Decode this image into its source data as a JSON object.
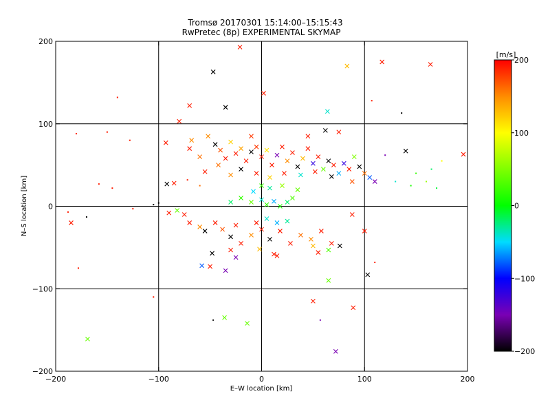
{
  "chart_data": {
    "type": "scatter",
    "title": "Tromsø 20170301 15:14:00–15:15:43",
    "subtitle": "RwPretec (8p) EXPERIMENTAL SKYMAP",
    "xlabel": "E–W location [km]",
    "ylabel": "N–S location [km]",
    "xlim": [
      -200,
      200
    ],
    "ylim": [
      -200,
      200
    ],
    "x_ticks": [
      -200,
      -100,
      0,
      100,
      200
    ],
    "y_ticks": [
      -200,
      -100,
      0,
      100,
      200
    ],
    "x_tick_labels": [
      "−200",
      "−100",
      "0",
      "100",
      "200"
    ],
    "y_tick_labels": [
      "−200",
      "−100",
      "0",
      "100",
      "200"
    ],
    "grid": true,
    "color_by": "velocity",
    "colorbar": {
      "title": "[m/s]",
      "min": -200,
      "max": 200,
      "ticks": [
        200,
        100,
        0,
        -100,
        -200
      ],
      "tick_labels": [
        "200",
        "100",
        "0",
        "−100",
        "−200"
      ],
      "stops": [
        {
          "v": -200,
          "color": "#000000"
        },
        {
          "v": -150,
          "color": "#7a00b4"
        },
        {
          "v": -100,
          "color": "#0000ff"
        },
        {
          "v": -50,
          "color": "#00dcff"
        },
        {
          "v": 0,
          "color": "#00ff00"
        },
        {
          "v": 100,
          "color": "#ffff00"
        },
        {
          "v": 150,
          "color": "#ff8c00"
        },
        {
          "v": 200,
          "color": "#ff0000"
        }
      ]
    },
    "points": [
      {
        "x": -21,
        "y": 193,
        "v": 190,
        "m": "x"
      },
      {
        "x": -47,
        "y": 163,
        "v": -200,
        "m": "x"
      },
      {
        "x": 83,
        "y": 170,
        "v": 130,
        "m": "x"
      },
      {
        "x": 117,
        "y": 175,
        "v": 190,
        "m": "x"
      },
      {
        "x": 164,
        "y": 172,
        "v": 190,
        "m": "x"
      },
      {
        "x": 2,
        "y": 137,
        "v": 190,
        "m": "x"
      },
      {
        "x": -140,
        "y": 132,
        "v": 190,
        "m": "+"
      },
      {
        "x": -70,
        "y": 122,
        "v": 190,
        "m": "x"
      },
      {
        "x": -35,
        "y": 120,
        "v": -200,
        "m": "x"
      },
      {
        "x": 64,
        "y": 115,
        "v": -40,
        "m": "x"
      },
      {
        "x": 136,
        "y": 113,
        "v": -200,
        "m": "+"
      },
      {
        "x": 107,
        "y": 128,
        "v": 190,
        "m": "+"
      },
      {
        "x": -80,
        "y": 103,
        "v": 190,
        "m": "x"
      },
      {
        "x": -180,
        "y": 88,
        "v": 190,
        "m": "+"
      },
      {
        "x": -150,
        "y": 90,
        "v": 190,
        "m": "+"
      },
      {
        "x": -128,
        "y": 80,
        "v": 190,
        "m": "+"
      },
      {
        "x": -93,
        "y": 77,
        "v": 190,
        "m": "x"
      },
      {
        "x": -70,
        "y": 70,
        "v": 190,
        "m": "x"
      },
      {
        "x": -60,
        "y": 60,
        "v": 160,
        "m": "x"
      },
      {
        "x": -52,
        "y": 85,
        "v": 150,
        "m": "x"
      },
      {
        "x": -45,
        "y": 75,
        "v": -200,
        "m": "x"
      },
      {
        "x": -40,
        "y": 68,
        "v": 170,
        "m": "x"
      },
      {
        "x": -35,
        "y": 58,
        "v": 190,
        "m": "x"
      },
      {
        "x": -30,
        "y": 78,
        "v": 120,
        "m": "x"
      },
      {
        "x": -25,
        "y": 64,
        "v": 190,
        "m": "x"
      },
      {
        "x": -20,
        "y": 70,
        "v": 140,
        "m": "x"
      },
      {
        "x": -15,
        "y": 55,
        "v": 190,
        "m": "x"
      },
      {
        "x": -10,
        "y": 66,
        "v": -200,
        "m": "x"
      },
      {
        "x": -5,
        "y": 72,
        "v": 180,
        "m": "x"
      },
      {
        "x": 0,
        "y": 60,
        "v": 190,
        "m": "x"
      },
      {
        "x": 5,
        "y": 68,
        "v": 110,
        "m": "x"
      },
      {
        "x": 10,
        "y": 50,
        "v": 190,
        "m": "x"
      },
      {
        "x": 15,
        "y": 62,
        "v": -150,
        "m": "x"
      },
      {
        "x": 20,
        "y": 72,
        "v": 190,
        "m": "x"
      },
      {
        "x": 25,
        "y": 55,
        "v": 150,
        "m": "x"
      },
      {
        "x": 30,
        "y": 65,
        "v": 190,
        "m": "x"
      },
      {
        "x": 35,
        "y": 48,
        "v": -200,
        "m": "x"
      },
      {
        "x": 40,
        "y": 58,
        "v": 130,
        "m": "x"
      },
      {
        "x": 45,
        "y": 70,
        "v": 190,
        "m": "x"
      },
      {
        "x": 50,
        "y": 52,
        "v": -120,
        "m": "x"
      },
      {
        "x": 55,
        "y": 60,
        "v": 190,
        "m": "x"
      },
      {
        "x": 60,
        "y": 45,
        "v": 40,
        "m": "x"
      },
      {
        "x": 65,
        "y": 55,
        "v": -200,
        "m": "x"
      },
      {
        "x": 70,
        "y": 50,
        "v": 190,
        "m": "x"
      },
      {
        "x": 75,
        "y": 40,
        "v": -60,
        "m": "x"
      },
      {
        "x": 80,
        "y": 52,
        "v": -120,
        "m": "x"
      },
      {
        "x": 85,
        "y": 45,
        "v": 190,
        "m": "x"
      },
      {
        "x": 90,
        "y": 60,
        "v": 50,
        "m": "x"
      },
      {
        "x": 95,
        "y": 48,
        "v": -200,
        "m": "x"
      },
      {
        "x": 100,
        "y": 40,
        "v": 160,
        "m": "x"
      },
      {
        "x": 105,
        "y": 35,
        "v": -80,
        "m": "x"
      },
      {
        "x": 110,
        "y": 30,
        "v": -150,
        "m": "x"
      },
      {
        "x": -55,
        "y": 42,
        "v": 190,
        "m": "x"
      },
      {
        "x": -42,
        "y": 50,
        "v": 160,
        "m": "x"
      },
      {
        "x": -20,
        "y": 45,
        "v": -200,
        "m": "x"
      },
      {
        "x": -5,
        "y": 40,
        "v": 190,
        "m": "x"
      },
      {
        "x": 8,
        "y": 35,
        "v": 120,
        "m": "x"
      },
      {
        "x": 22,
        "y": 40,
        "v": 190,
        "m": "x"
      },
      {
        "x": 38,
        "y": 38,
        "v": -40,
        "m": "x"
      },
      {
        "x": 52,
        "y": 42,
        "v": 190,
        "m": "x"
      },
      {
        "x": 68,
        "y": 36,
        "v": -200,
        "m": "x"
      },
      {
        "x": 88,
        "y": 30,
        "v": 170,
        "m": "x"
      },
      {
        "x": -68,
        "y": 80,
        "v": 150,
        "m": "x"
      },
      {
        "x": -10,
        "y": 85,
        "v": 180,
        "m": "x"
      },
      {
        "x": 45,
        "y": 85,
        "v": 190,
        "m": "x"
      },
      {
        "x": 62,
        "y": 92,
        "v": -200,
        "m": "x"
      },
      {
        "x": 75,
        "y": 90,
        "v": 190,
        "m": "x"
      },
      {
        "x": 140,
        "y": 67,
        "v": -200,
        "m": "x"
      },
      {
        "x": 120,
        "y": 62,
        "v": -150,
        "m": "+"
      },
      {
        "x": 130,
        "y": 30,
        "v": -40,
        "m": "+"
      },
      {
        "x": 150,
        "y": 40,
        "v": 20,
        "m": "+"
      },
      {
        "x": 165,
        "y": 45,
        "v": -20,
        "m": "+"
      },
      {
        "x": 175,
        "y": 55,
        "v": 100,
        "m": "+"
      },
      {
        "x": 196,
        "y": 63,
        "v": 190,
        "m": "x"
      },
      {
        "x": 145,
        "y": 25,
        "v": 10,
        "m": "+"
      },
      {
        "x": 160,
        "y": 30,
        "v": 60,
        "m": "+"
      },
      {
        "x": 170,
        "y": 22,
        "v": -10,
        "m": "+"
      },
      {
        "x": -158,
        "y": 27,
        "v": 190,
        "m": "+"
      },
      {
        "x": -145,
        "y": 22,
        "v": 190,
        "m": "+"
      },
      {
        "x": -92,
        "y": 27,
        "v": -200,
        "m": "x"
      },
      {
        "x": -85,
        "y": 28,
        "v": 190,
        "m": "x"
      },
      {
        "x": -72,
        "y": 32,
        "v": 190,
        "m": "+"
      },
      {
        "x": -60,
        "y": 25,
        "v": 160,
        "m": "+"
      },
      {
        "x": -30,
        "y": 38,
        "v": 150,
        "m": "x"
      },
      {
        "x": -30,
        "y": 5,
        "v": -20,
        "m": "x"
      },
      {
        "x": -20,
        "y": 10,
        "v": 20,
        "m": "x"
      },
      {
        "x": -10,
        "y": 5,
        "v": 40,
        "m": "x"
      },
      {
        "x": 0,
        "y": 8,
        "v": -40,
        "m": "x"
      },
      {
        "x": 5,
        "y": 2,
        "v": 20,
        "m": "x"
      },
      {
        "x": 12,
        "y": 6,
        "v": -60,
        "m": "x"
      },
      {
        "x": 18,
        "y": 0,
        "v": 10,
        "m": "x"
      },
      {
        "x": 25,
        "y": 5,
        "v": -20,
        "m": "x"
      },
      {
        "x": 30,
        "y": 10,
        "v": 30,
        "m": "x"
      },
      {
        "x": 8,
        "y": 22,
        "v": -30,
        "m": "x"
      },
      {
        "x": 20,
        "y": 25,
        "v": 60,
        "m": "x"
      },
      {
        "x": 0,
        "y": 25,
        "v": 20,
        "m": "x"
      },
      {
        "x": -8,
        "y": 18,
        "v": -50,
        "m": "x"
      },
      {
        "x": 35,
        "y": 20,
        "v": 40,
        "m": "x"
      },
      {
        "x": 15,
        "y": -20,
        "v": -60,
        "m": "x"
      },
      {
        "x": 5,
        "y": -15,
        "v": -40,
        "m": "x"
      },
      {
        "x": -5,
        "y": -20,
        "v": 190,
        "m": "x"
      },
      {
        "x": 25,
        "y": -18,
        "v": -30,
        "m": "x"
      },
      {
        "x": -188,
        "y": -7,
        "v": 190,
        "m": "+"
      },
      {
        "x": -185,
        "y": -20,
        "v": 190,
        "m": "x"
      },
      {
        "x": -170,
        "y": -13,
        "v": -200,
        "m": "+"
      },
      {
        "x": -125,
        "y": -3,
        "v": 190,
        "m": "+"
      },
      {
        "x": -105,
        "y": 2,
        "v": -200,
        "m": "+"
      },
      {
        "x": -100,
        "y": 4,
        "v": -200,
        "m": "+"
      },
      {
        "x": -90,
        "y": -8,
        "v": 190,
        "m": "x"
      },
      {
        "x": -82,
        "y": -5,
        "v": 40,
        "m": "x"
      },
      {
        "x": -75,
        "y": -10,
        "v": 190,
        "m": "x"
      },
      {
        "x": -70,
        "y": -20,
        "v": 190,
        "m": "x"
      },
      {
        "x": -60,
        "y": -25,
        "v": 150,
        "m": "x"
      },
      {
        "x": -55,
        "y": -30,
        "v": -200,
        "m": "x"
      },
      {
        "x": -45,
        "y": -20,
        "v": 190,
        "m": "x"
      },
      {
        "x": -38,
        "y": -28,
        "v": 170,
        "m": "x"
      },
      {
        "x": -30,
        "y": -37,
        "v": -200,
        "m": "x"
      },
      {
        "x": -25,
        "y": -23,
        "v": 190,
        "m": "x"
      },
      {
        "x": -20,
        "y": -45,
        "v": 190,
        "m": "x"
      },
      {
        "x": -10,
        "y": -35,
        "v": 150,
        "m": "x"
      },
      {
        "x": 0,
        "y": -28,
        "v": 190,
        "m": "x"
      },
      {
        "x": 8,
        "y": -40,
        "v": -200,
        "m": "x"
      },
      {
        "x": 18,
        "y": -30,
        "v": 190,
        "m": "x"
      },
      {
        "x": 28,
        "y": -45,
        "v": 190,
        "m": "x"
      },
      {
        "x": 38,
        "y": -35,
        "v": 160,
        "m": "x"
      },
      {
        "x": 48,
        "y": -40,
        "v": 150,
        "m": "x"
      },
      {
        "x": 58,
        "y": -30,
        "v": 190,
        "m": "x"
      },
      {
        "x": 68,
        "y": -45,
        "v": 190,
        "m": "x"
      },
      {
        "x": 88,
        "y": -10,
        "v": 190,
        "m": "x"
      },
      {
        "x": 100,
        "y": -30,
        "v": 190,
        "m": "x"
      },
      {
        "x": -48,
        "y": -57,
        "v": -200,
        "m": "x"
      },
      {
        "x": -30,
        "y": -53,
        "v": 190,
        "m": "x"
      },
      {
        "x": -25,
        "y": -62,
        "v": -150,
        "m": "x"
      },
      {
        "x": -50,
        "y": -73,
        "v": 190,
        "m": "x"
      },
      {
        "x": -58,
        "y": -72,
        "v": -80,
        "m": "x"
      },
      {
        "x": -35,
        "y": -78,
        "v": -150,
        "m": "x"
      },
      {
        "x": -2,
        "y": -52,
        "v": 130,
        "m": "x"
      },
      {
        "x": 12,
        "y": -58,
        "v": 190,
        "m": "x"
      },
      {
        "x": 15,
        "y": -60,
        "v": 190,
        "m": "x"
      },
      {
        "x": 50,
        "y": -48,
        "v": 130,
        "m": "x"
      },
      {
        "x": 55,
        "y": -56,
        "v": 190,
        "m": "x"
      },
      {
        "x": 65,
        "y": -53,
        "v": 30,
        "m": "x"
      },
      {
        "x": 76,
        "y": -48,
        "v": -200,
        "m": "x"
      },
      {
        "x": 103,
        "y": -83,
        "v": -200,
        "m": "x"
      },
      {
        "x": 110,
        "y": -68,
        "v": 190,
        "m": "+"
      },
      {
        "x": 65,
        "y": -90,
        "v": 40,
        "m": "x"
      },
      {
        "x": -178,
        "y": -75,
        "v": 190,
        "m": "+"
      },
      {
        "x": -105,
        "y": -110,
        "v": 190,
        "m": "+"
      },
      {
        "x": 50,
        "y": -115,
        "v": 190,
        "m": "x"
      },
      {
        "x": 89,
        "y": -123,
        "v": 190,
        "m": "x"
      },
      {
        "x": -36,
        "y": -135,
        "v": 40,
        "m": "x"
      },
      {
        "x": -47,
        "y": -138,
        "v": -200,
        "m": "+"
      },
      {
        "x": -14,
        "y": -142,
        "v": 40,
        "m": "x"
      },
      {
        "x": 57,
        "y": -138,
        "v": -150,
        "m": "+"
      },
      {
        "x": -169,
        "y": -161,
        "v": 40,
        "m": "x"
      },
      {
        "x": 72,
        "y": -176,
        "v": -150,
        "m": "x"
      }
    ]
  }
}
